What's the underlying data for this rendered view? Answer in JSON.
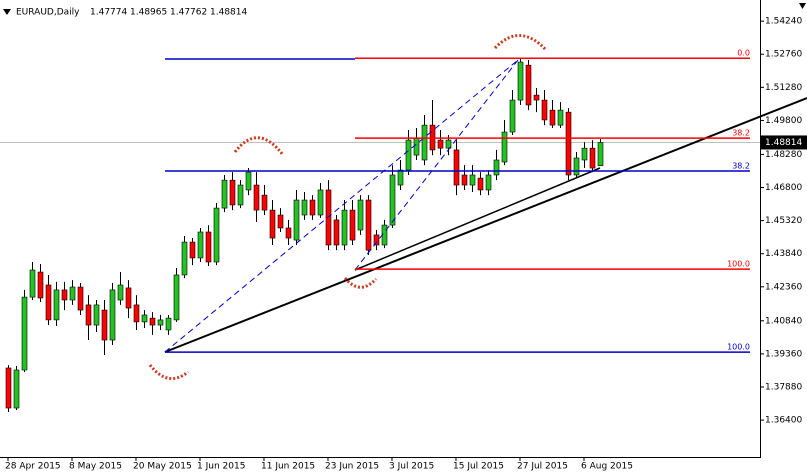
{
  "chart_data": {
    "type": "candlestick",
    "symbol": "EURAUD,Daily",
    "categories": [
      "28 Apr 2015",
      null,
      null,
      null,
      null,
      null,
      null,
      null,
      "8 May 2015",
      null,
      null,
      null,
      null,
      null,
      null,
      null,
      "20 May 2015",
      null,
      null,
      null,
      null,
      null,
      null,
      null,
      "1 Jun 2015",
      null,
      null,
      null,
      null,
      null,
      null,
      null,
      "11 Jun 2015",
      null,
      null,
      null,
      null,
      null,
      null,
      null,
      "23 Jun 2015",
      null,
      null,
      null,
      null,
      null,
      null,
      null,
      "3 Jul 2015",
      null,
      null,
      null,
      null,
      null,
      null,
      null,
      "15 Jul 2015",
      null,
      null,
      null,
      null,
      null,
      null,
      null,
      "27 Jul 2015",
      null,
      null,
      null,
      null,
      null,
      null,
      null,
      "6 Aug 2015",
      null,
      null
    ],
    "ohlc": [
      [
        1.3873,
        1.3886,
        1.3676,
        1.3694
      ],
      [
        1.3694,
        1.3882,
        1.3685,
        1.3864
      ],
      [
        1.3864,
        1.4222,
        1.3855,
        1.419
      ],
      [
        1.419,
        1.4347,
        1.4177,
        1.4311
      ],
      [
        1.4302,
        1.4338,
        1.4168,
        1.4186
      ],
      [
        1.4244,
        1.4289,
        1.4065,
        1.4088
      ],
      [
        1.4088,
        1.4258,
        1.4061,
        1.4222
      ],
      [
        1.4222,
        1.4258,
        1.4132,
        1.4177
      ],
      [
        1.4177,
        1.4266,
        1.4155,
        1.4235
      ],
      [
        1.4235,
        1.4253,
        1.411,
        1.4132
      ],
      [
        1.4155,
        1.4199,
        1.3998,
        1.4065
      ],
      [
        1.4065,
        1.4177,
        1.4034,
        1.4155
      ],
      [
        1.4132,
        1.4177,
        1.3931,
        1.3998
      ],
      [
        1.3998,
        1.4253,
        1.3976,
        1.4222
      ],
      [
        1.4177,
        1.4302,
        1.4155,
        1.4244
      ],
      [
        1.4231,
        1.4266,
        1.4096,
        1.4141
      ],
      [
        1.4155,
        1.4199,
        1.4043,
        1.4079
      ],
      [
        1.4079,
        1.4132,
        1.4052,
        1.411
      ],
      [
        1.4096,
        1.4123,
        1.4021,
        1.4065
      ],
      [
        1.4065,
        1.411,
        1.4043,
        1.4088
      ],
      [
        1.4043,
        1.411,
        1.4021,
        1.4096
      ],
      [
        1.4088,
        1.432,
        1.4079,
        1.4289
      ],
      [
        1.4289,
        1.4463,
        1.4275,
        1.4436
      ],
      [
        1.4436,
        1.4454,
        1.4333,
        1.4365
      ],
      [
        1.4365,
        1.4499,
        1.4347,
        1.4481
      ],
      [
        1.4481,
        1.4512,
        1.4329,
        1.4347
      ],
      [
        1.4347,
        1.4611,
        1.4333,
        1.4588
      ],
      [
        1.4588,
        1.4736,
        1.457,
        1.4713
      ],
      [
        1.4713,
        1.4749,
        1.4579,
        1.4602
      ],
      [
        1.4602,
        1.4713,
        1.4588,
        1.4691
      ],
      [
        1.4669,
        1.4767,
        1.4646,
        1.4749
      ],
      [
        1.4691,
        1.4749,
        1.4526,
        1.4579
      ],
      [
        1.4646,
        1.4691,
        1.4557,
        1.4579
      ],
      [
        1.4579,
        1.4624,
        1.4423,
        1.4454
      ],
      [
        1.4557,
        1.4588,
        1.4481,
        1.4499
      ],
      [
        1.4499,
        1.4535,
        1.4423,
        1.4454
      ],
      [
        1.4445,
        1.4669,
        1.4423,
        1.4624
      ],
      [
        1.4557,
        1.466,
        1.4535,
        1.4624
      ],
      [
        1.4624,
        1.4646,
        1.4535,
        1.4557
      ],
      [
        1.4557,
        1.47,
        1.4544,
        1.4669
      ],
      [
        1.4669,
        1.4713,
        1.44,
        1.4423
      ],
      [
        1.4535,
        1.4557,
        1.44,
        1.4423
      ],
      [
        1.4423,
        1.4624,
        1.44,
        1.4579
      ],
      [
        1.4579,
        1.4624,
        1.4423,
        1.4445
      ],
      [
        1.449,
        1.4646,
        1.4468,
        1.4624
      ],
      [
        1.4624,
        1.4646,
        1.4378,
        1.44
      ],
      [
        1.4468,
        1.449,
        1.44,
        1.4423
      ],
      [
        1.4423,
        1.4535,
        1.4409,
        1.4512
      ],
      [
        1.4512,
        1.478,
        1.4499,
        1.4736
      ],
      [
        1.4691,
        1.4803,
        1.4669,
        1.4758
      ],
      [
        1.4758,
        1.4937,
        1.4736,
        1.4892
      ],
      [
        1.4825,
        1.4946,
        1.4803,
        1.4901
      ],
      [
        1.4803,
        1.5004,
        1.478,
        1.4959
      ],
      [
        1.4959,
        1.5071,
        1.4825,
        1.4848
      ],
      [
        1.4892,
        1.4937,
        1.4825,
        1.4856
      ],
      [
        1.4856,
        1.4915,
        1.4825,
        1.4892
      ],
      [
        1.4848,
        1.4892,
        1.4646,
        1.4691
      ],
      [
        1.4736,
        1.478,
        1.4669,
        1.4691
      ],
      [
        1.4691,
        1.478,
        1.466,
        1.4736
      ],
      [
        1.4722,
        1.4749,
        1.4646,
        1.4669
      ],
      [
        1.4669,
        1.4758,
        1.4646,
        1.4736
      ],
      [
        1.4736,
        1.4848,
        1.4713,
        1.4803
      ],
      [
        1.4794,
        1.4982,
        1.478,
        1.4928
      ],
      [
        1.4928,
        1.5116,
        1.4915,
        1.5071
      ],
      [
        1.5071,
        1.5259,
        1.5049,
        1.5241
      ],
      [
        1.5227,
        1.525,
        1.5026,
        1.5049
      ],
      [
        1.5093,
        1.5125,
        1.5017,
        1.5071
      ],
      [
        1.5071,
        1.5116,
        1.4959,
        1.4982
      ],
      [
        1.5026,
        1.5071,
        1.4946,
        1.4959
      ],
      [
        1.4959,
        1.5062,
        1.4946,
        1.5026
      ],
      [
        1.5017,
        1.5035,
        1.4713,
        1.4736
      ],
      [
        1.4736,
        1.4839,
        1.4722,
        1.4812
      ],
      [
        1.4803,
        1.4883,
        1.4767,
        1.4856
      ],
      [
        1.4856,
        1.4892,
        1.4749,
        1.4767
      ],
      [
        1.47774,
        1.48965,
        1.47762,
        1.48814
      ]
    ],
    "up_color": "#22c322",
    "down_color": "#ff0000",
    "ylim": [
      1.3475,
      1.5505
    ],
    "yticks": [
      {
        "value": 1.5424,
        "label": "1.54240"
      },
      {
        "value": 1.5276,
        "label": "1.52760"
      },
      {
        "value": 1.5128,
        "label": "1.51280"
      },
      {
        "value": 1.498,
        "label": "1.49800"
      },
      {
        "value": 1.4828,
        "label": "1.48280"
      },
      {
        "value": 1.468,
        "label": "1.46800"
      },
      {
        "value": 1.4532,
        "label": "1.45320"
      },
      {
        "value": 1.4384,
        "label": "1.43840"
      },
      {
        "value": 1.4236,
        "label": "1.42360"
      },
      {
        "value": 1.4084,
        "label": "1.40840"
      },
      {
        "value": 1.3936,
        "label": "1.39360"
      },
      {
        "value": 1.3788,
        "label": "1.37880"
      },
      {
        "value": 1.364,
        "label": "1.36400"
      }
    ],
    "fib_levels": [
      {
        "label": "0.0",
        "value": 1.5258,
        "color": "#ff0000"
      },
      {
        "label": "38.2",
        "value": 1.4901,
        "color": "#ff0000"
      },
      {
        "label": "100.0",
        "value": 1.4315,
        "color": "#ff0000"
      },
      {
        "label": "38.2",
        "value": 1.4754,
        "color": "#0000c8"
      },
      {
        "label": "100.0",
        "value": 1.3944,
        "color": "#0000c8"
      }
    ]
  }
}
